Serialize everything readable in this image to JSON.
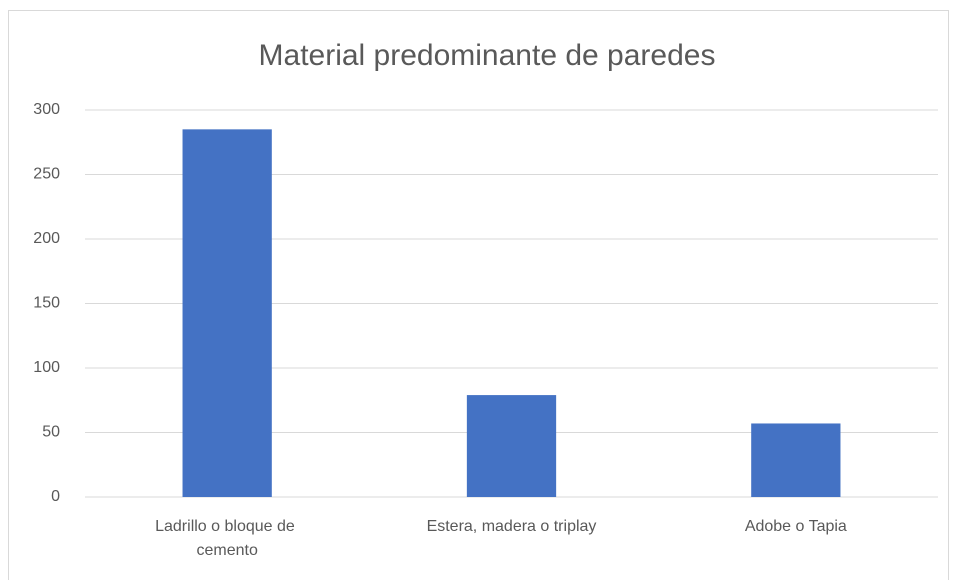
{
  "chart_data": {
    "type": "bar",
    "title": "Material predominante de paredes",
    "categories": [
      "Ladrillo o bloque de cemento",
      "Estera, madera o triplay",
      "Adobe o Tapia"
    ],
    "values": [
      285,
      79,
      57
    ],
    "color": "#4472c4",
    "ylim": [
      0,
      300
    ],
    "yticks": [
      0,
      50,
      100,
      150,
      200,
      250,
      300
    ],
    "grid": true
  }
}
